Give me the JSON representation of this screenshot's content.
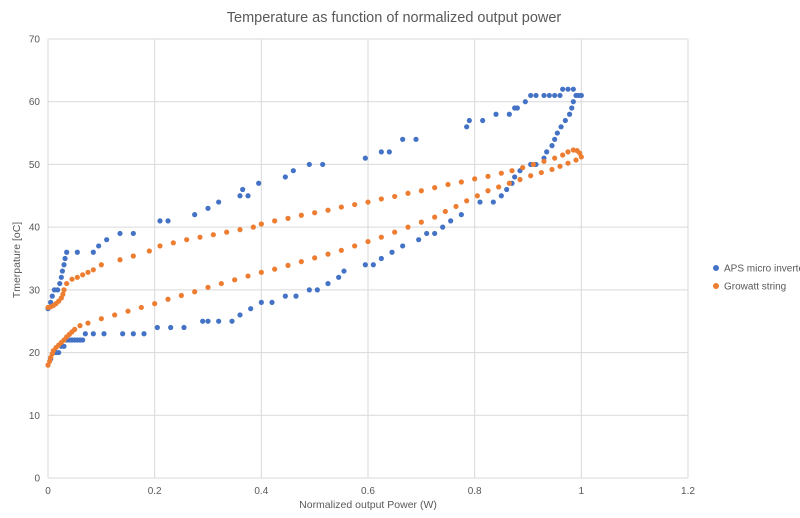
{
  "chart_data": {
    "type": "scatter",
    "title": "Temperature as function of normalized output power",
    "xlabel": "Normalized output Power (W)",
    "ylabel": "Tmerpature [oC]",
    "xlim": [
      0,
      1.2
    ],
    "ylim": [
      0,
      70
    ],
    "xticks": [
      "0",
      "0.2",
      "0.4",
      "0.6",
      "0.8",
      "1",
      "1.2"
    ],
    "yticks": [
      "0",
      "10",
      "20",
      "30",
      "40",
      "50",
      "60",
      "70"
    ],
    "grid": true,
    "legend_position": "right",
    "series": [
      {
        "name": "APS micro inverter",
        "color": "#4472C4",
        "points": [
          [
            0.0,
            27
          ],
          [
            0.005,
            28
          ],
          [
            0.008,
            29
          ],
          [
            0.012,
            30
          ],
          [
            0.018,
            30
          ],
          [
            0.022,
            31
          ],
          [
            0.025,
            32
          ],
          [
            0.027,
            33
          ],
          [
            0.03,
            34
          ],
          [
            0.032,
            35
          ],
          [
            0.035,
            36
          ],
          [
            0.055,
            36
          ],
          [
            0.085,
            36
          ],
          [
            0.095,
            37
          ],
          [
            0.11,
            38
          ],
          [
            0.135,
            39
          ],
          [
            0.16,
            39
          ],
          [
            0.21,
            41
          ],
          [
            0.225,
            41
          ],
          [
            0.275,
            42
          ],
          [
            0.3,
            43
          ],
          [
            0.32,
            44
          ],
          [
            0.36,
            45
          ],
          [
            0.365,
            46
          ],
          [
            0.375,
            45
          ],
          [
            0.395,
            47
          ],
          [
            0.445,
            48
          ],
          [
            0.46,
            49
          ],
          [
            0.49,
            50
          ],
          [
            0.515,
            50
          ],
          [
            0.595,
            51
          ],
          [
            0.625,
            52
          ],
          [
            0.64,
            52
          ],
          [
            0.665,
            54
          ],
          [
            0.69,
            54
          ],
          [
            0.785,
            56
          ],
          [
            0.79,
            57
          ],
          [
            0.815,
            57
          ],
          [
            0.84,
            58
          ],
          [
            0.865,
            58
          ],
          [
            0.875,
            59
          ],
          [
            0.88,
            59
          ],
          [
            0.895,
            60
          ],
          [
            0.905,
            61
          ],
          [
            0.915,
            61
          ],
          [
            0.93,
            61
          ],
          [
            0.94,
            61
          ],
          [
            0.95,
            61
          ],
          [
            0.96,
            61
          ],
          [
            0.965,
            62
          ],
          [
            0.975,
            62
          ],
          [
            0.985,
            62
          ],
          [
            0.99,
            61
          ],
          [
            0.995,
            61
          ],
          [
            1.0,
            61
          ],
          [
            0.985,
            60
          ],
          [
            0.982,
            59
          ],
          [
            0.978,
            58
          ],
          [
            0.97,
            57
          ],
          [
            0.962,
            56
          ],
          [
            0.955,
            55
          ],
          [
            0.95,
            54
          ],
          [
            0.945,
            53
          ],
          [
            0.935,
            52
          ],
          [
            0.93,
            51
          ],
          [
            0.915,
            50
          ],
          [
            0.905,
            50
          ],
          [
            0.885,
            49
          ],
          [
            0.875,
            48
          ],
          [
            0.87,
            47
          ],
          [
            0.86,
            46
          ],
          [
            0.85,
            45
          ],
          [
            0.835,
            44
          ],
          [
            0.81,
            44
          ],
          [
            0.775,
            42
          ],
          [
            0.755,
            41
          ],
          [
            0.74,
            40
          ],
          [
            0.725,
            39
          ],
          [
            0.71,
            39
          ],
          [
            0.695,
            38
          ],
          [
            0.665,
            37
          ],
          [
            0.645,
            36
          ],
          [
            0.625,
            35
          ],
          [
            0.61,
            34
          ],
          [
            0.595,
            34
          ],
          [
            0.555,
            33
          ],
          [
            0.545,
            32
          ],
          [
            0.525,
            31
          ],
          [
            0.505,
            30
          ],
          [
            0.49,
            30
          ],
          [
            0.465,
            29
          ],
          [
            0.445,
            29
          ],
          [
            0.42,
            28
          ],
          [
            0.4,
            28
          ],
          [
            0.38,
            27
          ],
          [
            0.36,
            26
          ],
          [
            0.345,
            25
          ],
          [
            0.32,
            25
          ],
          [
            0.3,
            25
          ],
          [
            0.29,
            25
          ],
          [
            0.255,
            24
          ],
          [
            0.23,
            24
          ],
          [
            0.205,
            24
          ],
          [
            0.18,
            23
          ],
          [
            0.16,
            23
          ],
          [
            0.14,
            23
          ],
          [
            0.105,
            23
          ],
          [
            0.085,
            23
          ],
          [
            0.07,
            23
          ],
          [
            0.065,
            22
          ],
          [
            0.06,
            22
          ],
          [
            0.055,
            22
          ],
          [
            0.05,
            22
          ],
          [
            0.045,
            22
          ],
          [
            0.04,
            22
          ],
          [
            0.035,
            22
          ],
          [
            0.03,
            21
          ],
          [
            0.025,
            21
          ],
          [
            0.02,
            20
          ],
          [
            0.015,
            20
          ],
          [
            0.01,
            20
          ],
          [
            0.005,
            19
          ]
        ]
      },
      {
        "name": "Growatt string",
        "color": "#ED7D31",
        "points": [
          [
            0.0,
            27.2
          ],
          [
            0.005,
            27.3
          ],
          [
            0.01,
            27.5
          ],
          [
            0.015,
            27.8
          ],
          [
            0.02,
            28.2
          ],
          [
            0.025,
            28.7
          ],
          [
            0.028,
            29.3
          ],
          [
            0.03,
            30.0
          ],
          [
            0.035,
            31.0
          ],
          [
            0.045,
            31.7
          ],
          [
            0.055,
            32.0
          ],
          [
            0.065,
            32.4
          ],
          [
            0.075,
            32.8
          ],
          [
            0.085,
            33.2
          ],
          [
            0.1,
            34.0
          ],
          [
            0.135,
            34.8
          ],
          [
            0.16,
            35.4
          ],
          [
            0.19,
            36.2
          ],
          [
            0.21,
            37.0
          ],
          [
            0.235,
            37.5
          ],
          [
            0.26,
            38.0
          ],
          [
            0.285,
            38.4
          ],
          [
            0.31,
            38.8
          ],
          [
            0.335,
            39.2
          ],
          [
            0.36,
            39.6
          ],
          [
            0.385,
            40.0
          ],
          [
            0.4,
            40.5
          ],
          [
            0.425,
            41.0
          ],
          [
            0.45,
            41.4
          ],
          [
            0.475,
            41.9
          ],
          [
            0.5,
            42.3
          ],
          [
            0.525,
            42.7
          ],
          [
            0.55,
            43.2
          ],
          [
            0.575,
            43.6
          ],
          [
            0.6,
            44.0
          ],
          [
            0.625,
            44.5
          ],
          [
            0.65,
            44.9
          ],
          [
            0.675,
            45.4
          ],
          [
            0.7,
            45.8
          ],
          [
            0.725,
            46.3
          ],
          [
            0.75,
            46.8
          ],
          [
            0.775,
            47.2
          ],
          [
            0.8,
            47.7
          ],
          [
            0.825,
            48.1
          ],
          [
            0.85,
            48.6
          ],
          [
            0.87,
            49.0
          ],
          [
            0.89,
            49.5
          ],
          [
            0.91,
            50.0
          ],
          [
            0.93,
            50.5
          ],
          [
            0.95,
            51.0
          ],
          [
            0.965,
            51.5
          ],
          [
            0.975,
            52.0
          ],
          [
            0.985,
            52.3
          ],
          [
            0.992,
            52.2
          ],
          [
            0.997,
            51.8
          ],
          [
            1.0,
            51.2
          ],
          [
            0.99,
            50.7
          ],
          [
            0.975,
            50.2
          ],
          [
            0.96,
            49.7
          ],
          [
            0.945,
            49.2
          ],
          [
            0.925,
            48.7
          ],
          [
            0.905,
            48.2
          ],
          [
            0.885,
            47.6
          ],
          [
            0.865,
            47.0
          ],
          [
            0.845,
            46.4
          ],
          [
            0.825,
            45.8
          ],
          [
            0.805,
            45.0
          ],
          [
            0.785,
            44.2
          ],
          [
            0.765,
            43.3
          ],
          [
            0.745,
            42.5
          ],
          [
            0.725,
            41.6
          ],
          [
            0.7,
            40.8
          ],
          [
            0.675,
            40.0
          ],
          [
            0.65,
            39.2
          ],
          [
            0.625,
            38.4
          ],
          [
            0.6,
            37.7
          ],
          [
            0.575,
            37.0
          ],
          [
            0.55,
            36.3
          ],
          [
            0.525,
            35.7
          ],
          [
            0.5,
            35.1
          ],
          [
            0.475,
            34.5
          ],
          [
            0.45,
            33.9
          ],
          [
            0.425,
            33.3
          ],
          [
            0.4,
            32.8
          ],
          [
            0.375,
            32.2
          ],
          [
            0.35,
            31.6
          ],
          [
            0.325,
            31.0
          ],
          [
            0.3,
            30.4
          ],
          [
            0.275,
            29.7
          ],
          [
            0.25,
            29.1
          ],
          [
            0.225,
            28.5
          ],
          [
            0.2,
            27.8
          ],
          [
            0.175,
            27.2
          ],
          [
            0.15,
            26.6
          ],
          [
            0.125,
            26.0
          ],
          [
            0.1,
            25.4
          ],
          [
            0.075,
            24.7
          ],
          [
            0.06,
            24.3
          ],
          [
            0.05,
            23.7
          ],
          [
            0.045,
            23.3
          ],
          [
            0.04,
            22.9
          ],
          [
            0.035,
            22.5
          ],
          [
            0.03,
            22.0
          ],
          [
            0.025,
            21.6
          ],
          [
            0.02,
            21.2
          ],
          [
            0.015,
            20.8
          ],
          [
            0.01,
            20.3
          ],
          [
            0.008,
            19.8
          ],
          [
            0.005,
            19.2
          ],
          [
            0.003,
            18.6
          ],
          [
            0.0,
            18.0
          ]
        ]
      }
    ]
  }
}
